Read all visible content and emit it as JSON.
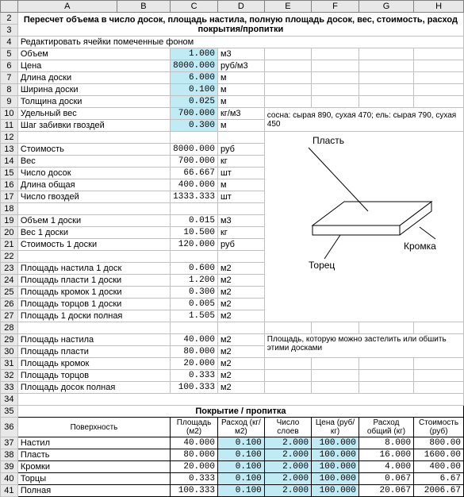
{
  "cols": [
    "A",
    "B",
    "C",
    "D",
    "E",
    "F",
    "G",
    "H"
  ],
  "title": "Пересчет объема в число досок, площадь настила, полную площадь досок, вес, стоимость, расход покрытия/пропитки",
  "edit_note": "Редактировать ячейки помеченные фоном",
  "r": [
    {
      "n": 5,
      "lab": "Объем",
      "val": "1.000",
      "unit": "м3",
      "edit": true
    },
    {
      "n": 6,
      "lab": "Цена",
      "val": "8000.000",
      "unit": "руб/м3",
      "edit": true
    },
    {
      "n": 7,
      "lab": "Длина доски",
      "val": "6.000",
      "unit": "м",
      "edit": true
    },
    {
      "n": 8,
      "lab": "Ширина доски",
      "val": "0.100",
      "unit": "м",
      "edit": true
    },
    {
      "n": 9,
      "lab": "Толщина доски",
      "val": "0.025",
      "unit": "м",
      "edit": true
    },
    {
      "n": 10,
      "lab": "Удельный вес",
      "val": "700.000",
      "unit": "кг/м3",
      "edit": true,
      "note": "сосна: сырая 890, сухая 470; ель: сырая 790, сухая 450"
    },
    {
      "n": 11,
      "lab": "Шаг забивки гвоздей",
      "val": "0.300",
      "unit": "м",
      "edit": true
    },
    {
      "n": 12,
      "lab": "",
      "val": "",
      "unit": ""
    },
    {
      "n": 13,
      "lab": "Стоимость",
      "val": "8000.000",
      "unit": "руб"
    },
    {
      "n": 14,
      "lab": "Вес",
      "val": "700.000",
      "unit": "кг"
    },
    {
      "n": 15,
      "lab": "Число досок",
      "val": "66.667",
      "unit": "шт"
    },
    {
      "n": 16,
      "lab": "Длина общая",
      "val": "400.000",
      "unit": "м"
    },
    {
      "n": 17,
      "lab": "Число гвоздей",
      "val": "1333.333",
      "unit": "шт"
    },
    {
      "n": 18,
      "lab": "",
      "val": "",
      "unit": ""
    },
    {
      "n": 19,
      "lab": "Объем 1 доски",
      "val": "0.015",
      "unit": "м3"
    },
    {
      "n": 20,
      "lab": "Вес 1 доски",
      "val": "10.500",
      "unit": "кг"
    },
    {
      "n": 21,
      "lab": "Стоимость 1 доски",
      "val": "120.000",
      "unit": "руб"
    },
    {
      "n": 22,
      "lab": "",
      "val": "",
      "unit": ""
    },
    {
      "n": 23,
      "lab": "Площадь настила 1 доск",
      "val": "0.600",
      "unit": "м2"
    },
    {
      "n": 24,
      "lab": "Площадь пласти 1 доски",
      "val": "1.200",
      "unit": "м2"
    },
    {
      "n": 25,
      "lab": "Площадь кромок 1 доски",
      "val": "0.300",
      "unit": "м2"
    },
    {
      "n": 26,
      "lab": "Площадь торцов 1 доски",
      "val": "0.005",
      "unit": "м2"
    },
    {
      "n": 27,
      "lab": "Площадь 1 доски полная",
      "val": "1.505",
      "unit": "м2"
    },
    {
      "n": 28,
      "lab": "",
      "val": "",
      "unit": ""
    },
    {
      "n": 29,
      "lab": "Площадь настила",
      "val": "40.000",
      "unit": "м2",
      "note": "Площадь, которую можно застелить или обшить этими досками"
    },
    {
      "n": 30,
      "lab": "Площадь пласти",
      "val": "80.000",
      "unit": "м2"
    },
    {
      "n": 31,
      "lab": "Площадь кромок",
      "val": "20.000",
      "unit": "м2"
    },
    {
      "n": 32,
      "lab": "Площадь торцов",
      "val": "0.333",
      "unit": "м2"
    },
    {
      "n": 33,
      "lab": "Площадь досок полная",
      "val": "100.333",
      "unit": "м2"
    }
  ],
  "diagram": {
    "plast": "Пласть",
    "kromka": "Кромка",
    "torets": "Торец"
  },
  "tbl": {
    "title": "Покрытие / пропитка",
    "hdr": [
      "Поверхность",
      "Площадь (м2)",
      "Расход (кг/м2)",
      "Число слоев",
      "Цена (руб/кг)",
      "Расход общий (кг)",
      "Стоимость (руб)"
    ],
    "rows": [
      {
        "n": 37,
        "c": [
          "Настил",
          "40.000",
          "0.100",
          "2.000",
          "100.000",
          "8.000",
          "800.00"
        ]
      },
      {
        "n": 38,
        "c": [
          "Пласть",
          "80.000",
          "0.100",
          "2.000",
          "100.000",
          "16.000",
          "1600.00"
        ]
      },
      {
        "n": 39,
        "c": [
          "Кромки",
          "20.000",
          "0.100",
          "2.000",
          "100.000",
          "4.000",
          "400.00"
        ]
      },
      {
        "n": 40,
        "c": [
          "Торцы",
          "0.333",
          "0.100",
          "2.000",
          "100.000",
          "0.067",
          "6.67"
        ]
      },
      {
        "n": 41,
        "c": [
          "Полная",
          "100.333",
          "0.100",
          "2.000",
          "100.000",
          "20.067",
          "2006.67"
        ]
      }
    ]
  }
}
